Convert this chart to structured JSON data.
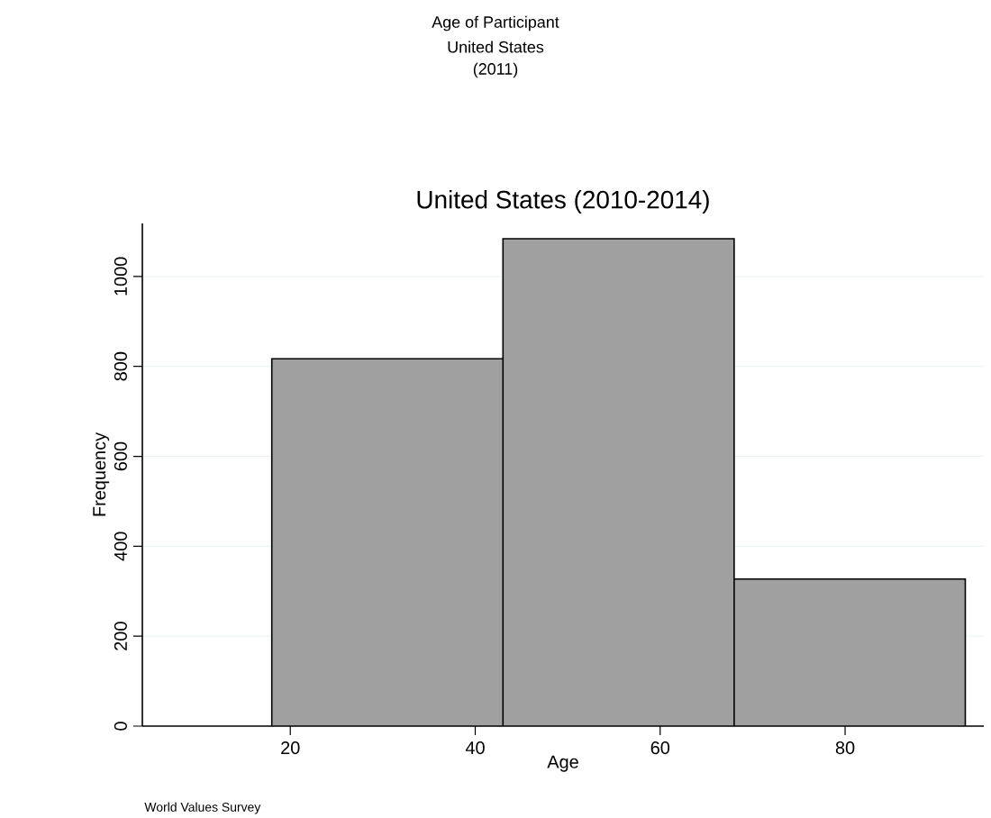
{
  "chart_data": {
    "type": "histogram",
    "title": "United States (2010-2014)",
    "xlabel": "Age",
    "ylabel": "Frequency",
    "bins": [
      18,
      43,
      68,
      93
    ],
    "values": [
      817,
      1084,
      327
    ],
    "color": "#a0a0a0",
    "xlim": [
      4,
      95
    ],
    "ylim": [
      0,
      1118
    ],
    "xticks": [
      20,
      40,
      60,
      80
    ],
    "yticks": [
      0,
      200,
      400,
      600,
      800,
      1000
    ],
    "grid": "y",
    "annotations": [
      "Age of Participant",
      "United States",
      "(2011)",
      "World Values Survey"
    ]
  }
}
